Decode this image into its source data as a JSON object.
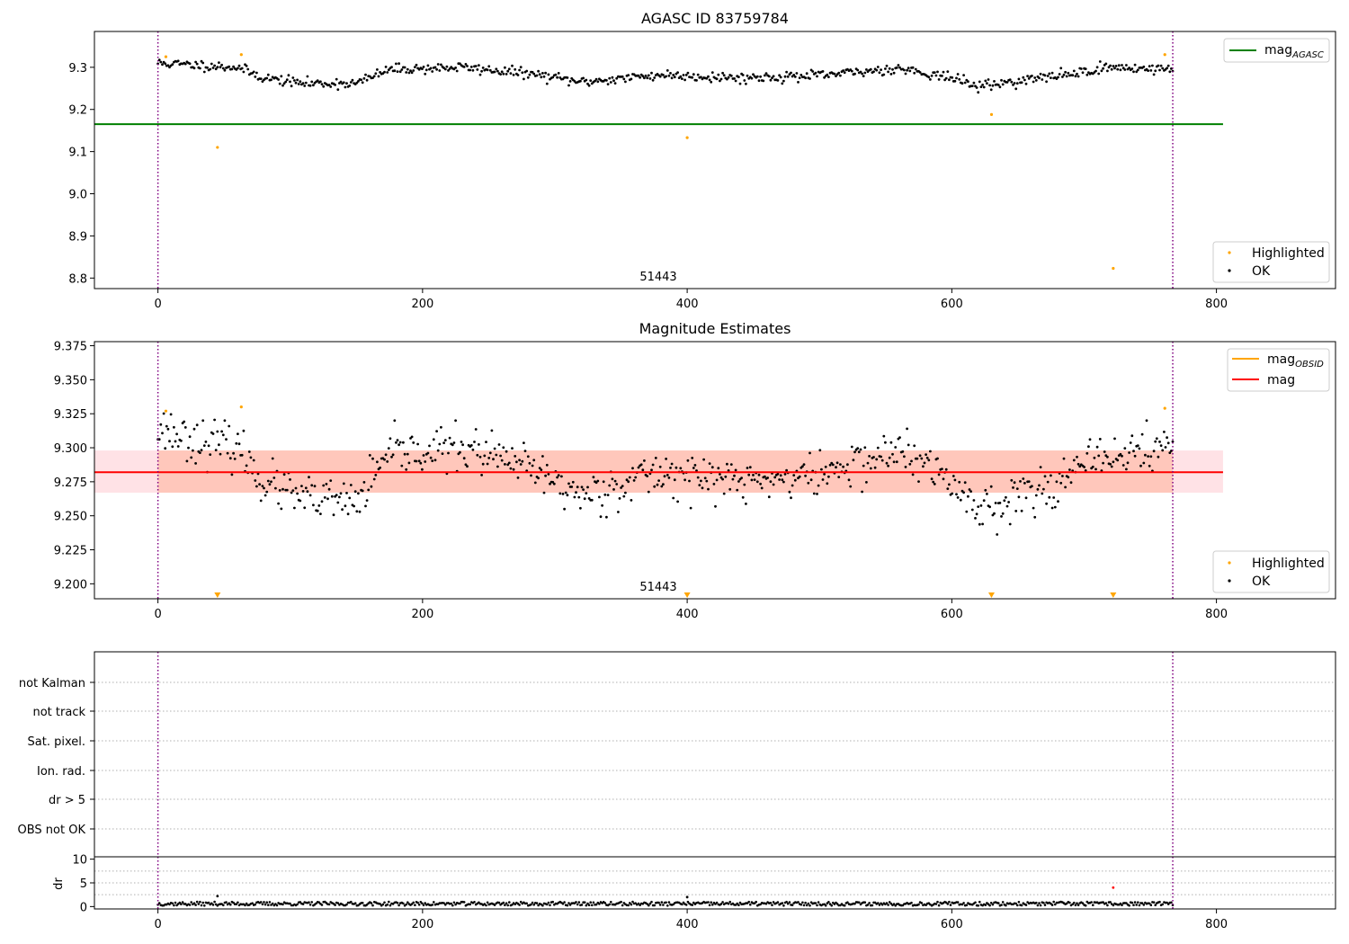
{
  "chart_data": [
    {
      "type": "scatter",
      "title": "AGASC ID 83759784",
      "xlim": [
        -48,
        890
      ],
      "ylim": [
        8.775,
        9.385
      ],
      "xticks": [
        0,
        200,
        400,
        600,
        800
      ],
      "yticks": [
        8.8,
        8.9,
        9.0,
        9.1,
        9.2,
        9.3
      ],
      "ytick_labels": [
        "8.8",
        "8.9",
        "9.0",
        "9.1",
        "9.2",
        "9.3"
      ],
      "annotation": "51443",
      "annotation_x": 400,
      "vlines": [
        0,
        767
      ],
      "series": [
        {
          "name": "OK",
          "color": "#000000",
          "kind": "points",
          "x_start": 0,
          "x_end": 767,
          "n": 700,
          "curve": [
            [
              0,
              9.31
            ],
            [
              30,
              9.305
            ],
            [
              60,
              9.3
            ],
            [
              80,
              9.275
            ],
            [
              110,
              9.262
            ],
            [
              150,
              9.262
            ],
            [
              175,
              9.295
            ],
            [
              230,
              9.3
            ],
            [
              280,
              9.285
            ],
            [
              320,
              9.265
            ],
            [
              380,
              9.282
            ],
            [
              440,
              9.275
            ],
            [
              500,
              9.28
            ],
            [
              560,
              9.298
            ],
            [
              600,
              9.275
            ],
            [
              620,
              9.255
            ],
            [
              680,
              9.28
            ],
            [
              720,
              9.3
            ],
            [
              767,
              9.295
            ]
          ],
          "scatter_sd": 0.006,
          "seed": 11
        },
        {
          "name": "Highlighted",
          "color": "#ffa500",
          "kind": "points",
          "points": [
            [
              6,
              9.325
            ],
            [
              45,
              9.11
            ],
            [
              63,
              9.33
            ],
            [
              400,
              9.133
            ],
            [
              630,
              9.188
            ],
            [
              722,
              8.823
            ],
            [
              761,
              9.33
            ]
          ]
        },
        {
          "name": "mag_AGASC",
          "color": "#008000",
          "kind": "hline",
          "y": 9.165,
          "x_start": -48,
          "x_end": 805
        }
      ],
      "legend_top": [
        {
          "label": "mag",
          "sub": "AGASC",
          "color": "#008000"
        }
      ],
      "legend_bottom": [
        {
          "label": "Highlighted",
          "color": "#ffa500"
        },
        {
          "label": "OK",
          "color": "#000000"
        }
      ]
    },
    {
      "type": "scatter",
      "title": "Magnitude Estimates",
      "xlim": [
        -48,
        890
      ],
      "ylim": [
        9.189,
        9.378
      ],
      "xticks": [
        0,
        200,
        400,
        600,
        800
      ],
      "yticks": [
        9.2,
        9.225,
        9.25,
        9.275,
        9.3,
        9.325,
        9.35,
        9.375
      ],
      "ytick_labels": [
        "9.200",
        "9.225",
        "9.250",
        "9.275",
        "9.300",
        "9.325",
        "9.350",
        "9.375"
      ],
      "annotation": "51443",
      "annotation_x": 400,
      "vlines": [
        0,
        767
      ],
      "band_outer": {
        "x_start": -48,
        "x_end": 805,
        "y0": 9.267,
        "y1": 9.298,
        "color": "#ffb6c1"
      },
      "band_inner": {
        "x_start": 0,
        "x_end": 767,
        "y0": 9.267,
        "y1": 9.298,
        "color": "#ffa07a"
      },
      "series": [
        {
          "name": "OK",
          "color": "#000000",
          "kind": "points",
          "x_start": 0,
          "x_end": 767,
          "n": 700,
          "curve": [
            [
              0,
              9.315
            ],
            [
              30,
              9.305
            ],
            [
              60,
              9.3
            ],
            [
              80,
              9.275
            ],
            [
              110,
              9.262
            ],
            [
              150,
              9.26
            ],
            [
              175,
              9.295
            ],
            [
              230,
              9.3
            ],
            [
              280,
              9.285
            ],
            [
              320,
              9.265
            ],
            [
              380,
              9.282
            ],
            [
              440,
              9.275
            ],
            [
              500,
              9.28
            ],
            [
              560,
              9.298
            ],
            [
              600,
              9.275
            ],
            [
              620,
              9.255
            ],
            [
              680,
              9.275
            ],
            [
              720,
              9.295
            ],
            [
              767,
              9.3
            ]
          ],
          "scatter_sd": 0.008,
          "seed": 23
        },
        {
          "name": "Highlighted",
          "color": "#ffa500",
          "kind": "points",
          "points": [
            [
              6,
              9.327
            ],
            [
              63,
              9.33
            ],
            [
              761,
              9.329
            ]
          ]
        },
        {
          "name": "Highlighted",
          "color": "#ffa500",
          "kind": "markers-bottom",
          "x": [
            45,
            400,
            630,
            722
          ]
        },
        {
          "name": "mag",
          "color": "#ff0000",
          "kind": "hline",
          "y": 9.282,
          "x_start": -48,
          "x_end": 805
        }
      ],
      "legend_top": [
        {
          "label": "mag",
          "sub": "OBSID",
          "color": "#ffa500"
        },
        {
          "label": "mag",
          "sub": "",
          "color": "#ff0000"
        }
      ],
      "legend_bottom": [
        {
          "label": "Highlighted",
          "color": "#ffa500"
        },
        {
          "label": "OK",
          "color": "#000000"
        }
      ]
    },
    {
      "type": "scatter",
      "xlim": [
        -48,
        890
      ],
      "vlines": [
        0,
        767
      ],
      "flag_labels": [
        "not Kalman",
        "not track",
        "Sat. pixel.",
        "Ion. rad.",
        "dr > 5",
        "OBS not OK"
      ],
      "dr_panel": {
        "ylabel": "dr",
        "ylim": [
          -0.5,
          10.5
        ],
        "yticks": [
          0,
          5,
          10
        ],
        "xticks": [
          0,
          200,
          400,
          600,
          800
        ],
        "series": [
          {
            "name": "OK",
            "color": "#000000",
            "kind": "points",
            "x_start": 0,
            "x_end": 767,
            "n": 700,
            "base": 0.6,
            "amp": 0.4,
            "seed": 37
          },
          {
            "name": "Highlighted",
            "color": "#ff0000",
            "kind": "points",
            "points": [
              [
                722,
                4.0
              ]
            ]
          }
        ],
        "outliers": [
          [
            45,
            2.2
          ],
          [
            400,
            2.0
          ]
        ]
      }
    }
  ]
}
